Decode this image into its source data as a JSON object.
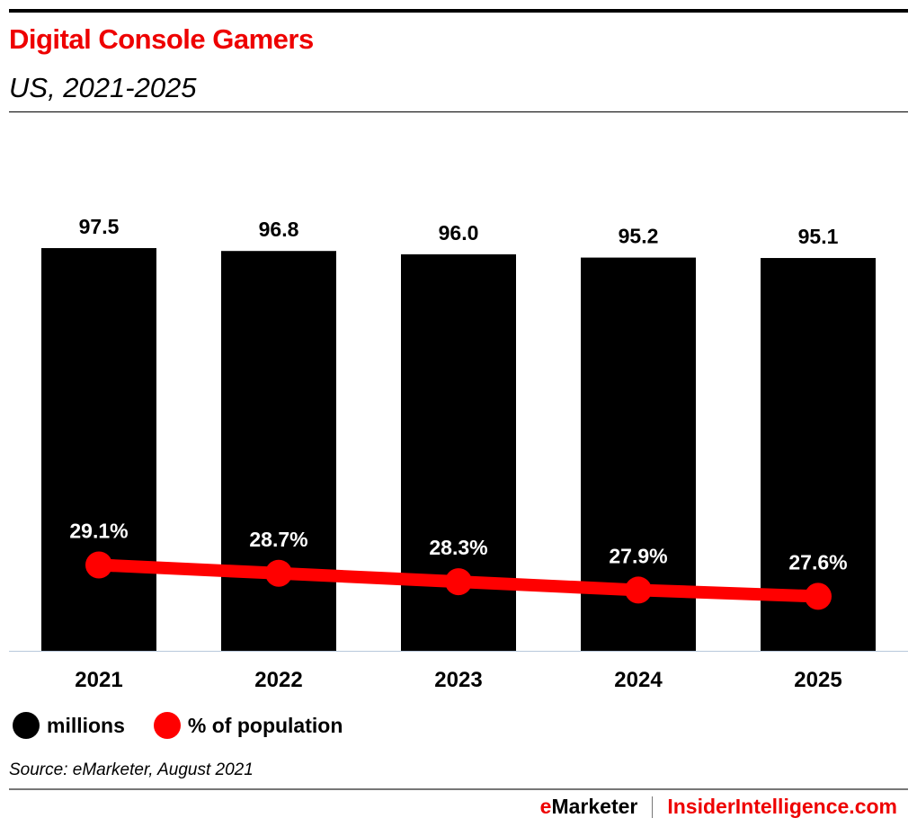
{
  "title": "Digital Console Gamers",
  "subtitle": "US, 2021-2025",
  "chart_data": {
    "type": "bar+line",
    "categories": [
      "2021",
      "2022",
      "2023",
      "2024",
      "2025"
    ],
    "series": [
      {
        "name": "millions",
        "type": "bar",
        "values": [
          97.5,
          96.8,
          96.0,
          95.2,
          95.1
        ],
        "labels": [
          "97.5",
          "96.8",
          "96.0",
          "95.2",
          "95.1"
        ],
        "color": "#000000"
      },
      {
        "name": "% of population",
        "type": "line",
        "values": [
          29.1,
          28.7,
          28.3,
          27.9,
          27.6
        ],
        "labels": [
          "29.1%",
          "28.7%",
          "28.3%",
          "27.9%",
          "27.6%"
        ],
        "color": "#ff0000"
      }
    ],
    "legend": "bottom-left",
    "grid": false
  },
  "legend": {
    "millions": "millions",
    "pct": "% of population"
  },
  "source": "Source: eMarketer, August 2021",
  "footer": {
    "brand_e": "e",
    "brand_rest": "Marketer",
    "site": "InsiderIntelligence.com"
  }
}
